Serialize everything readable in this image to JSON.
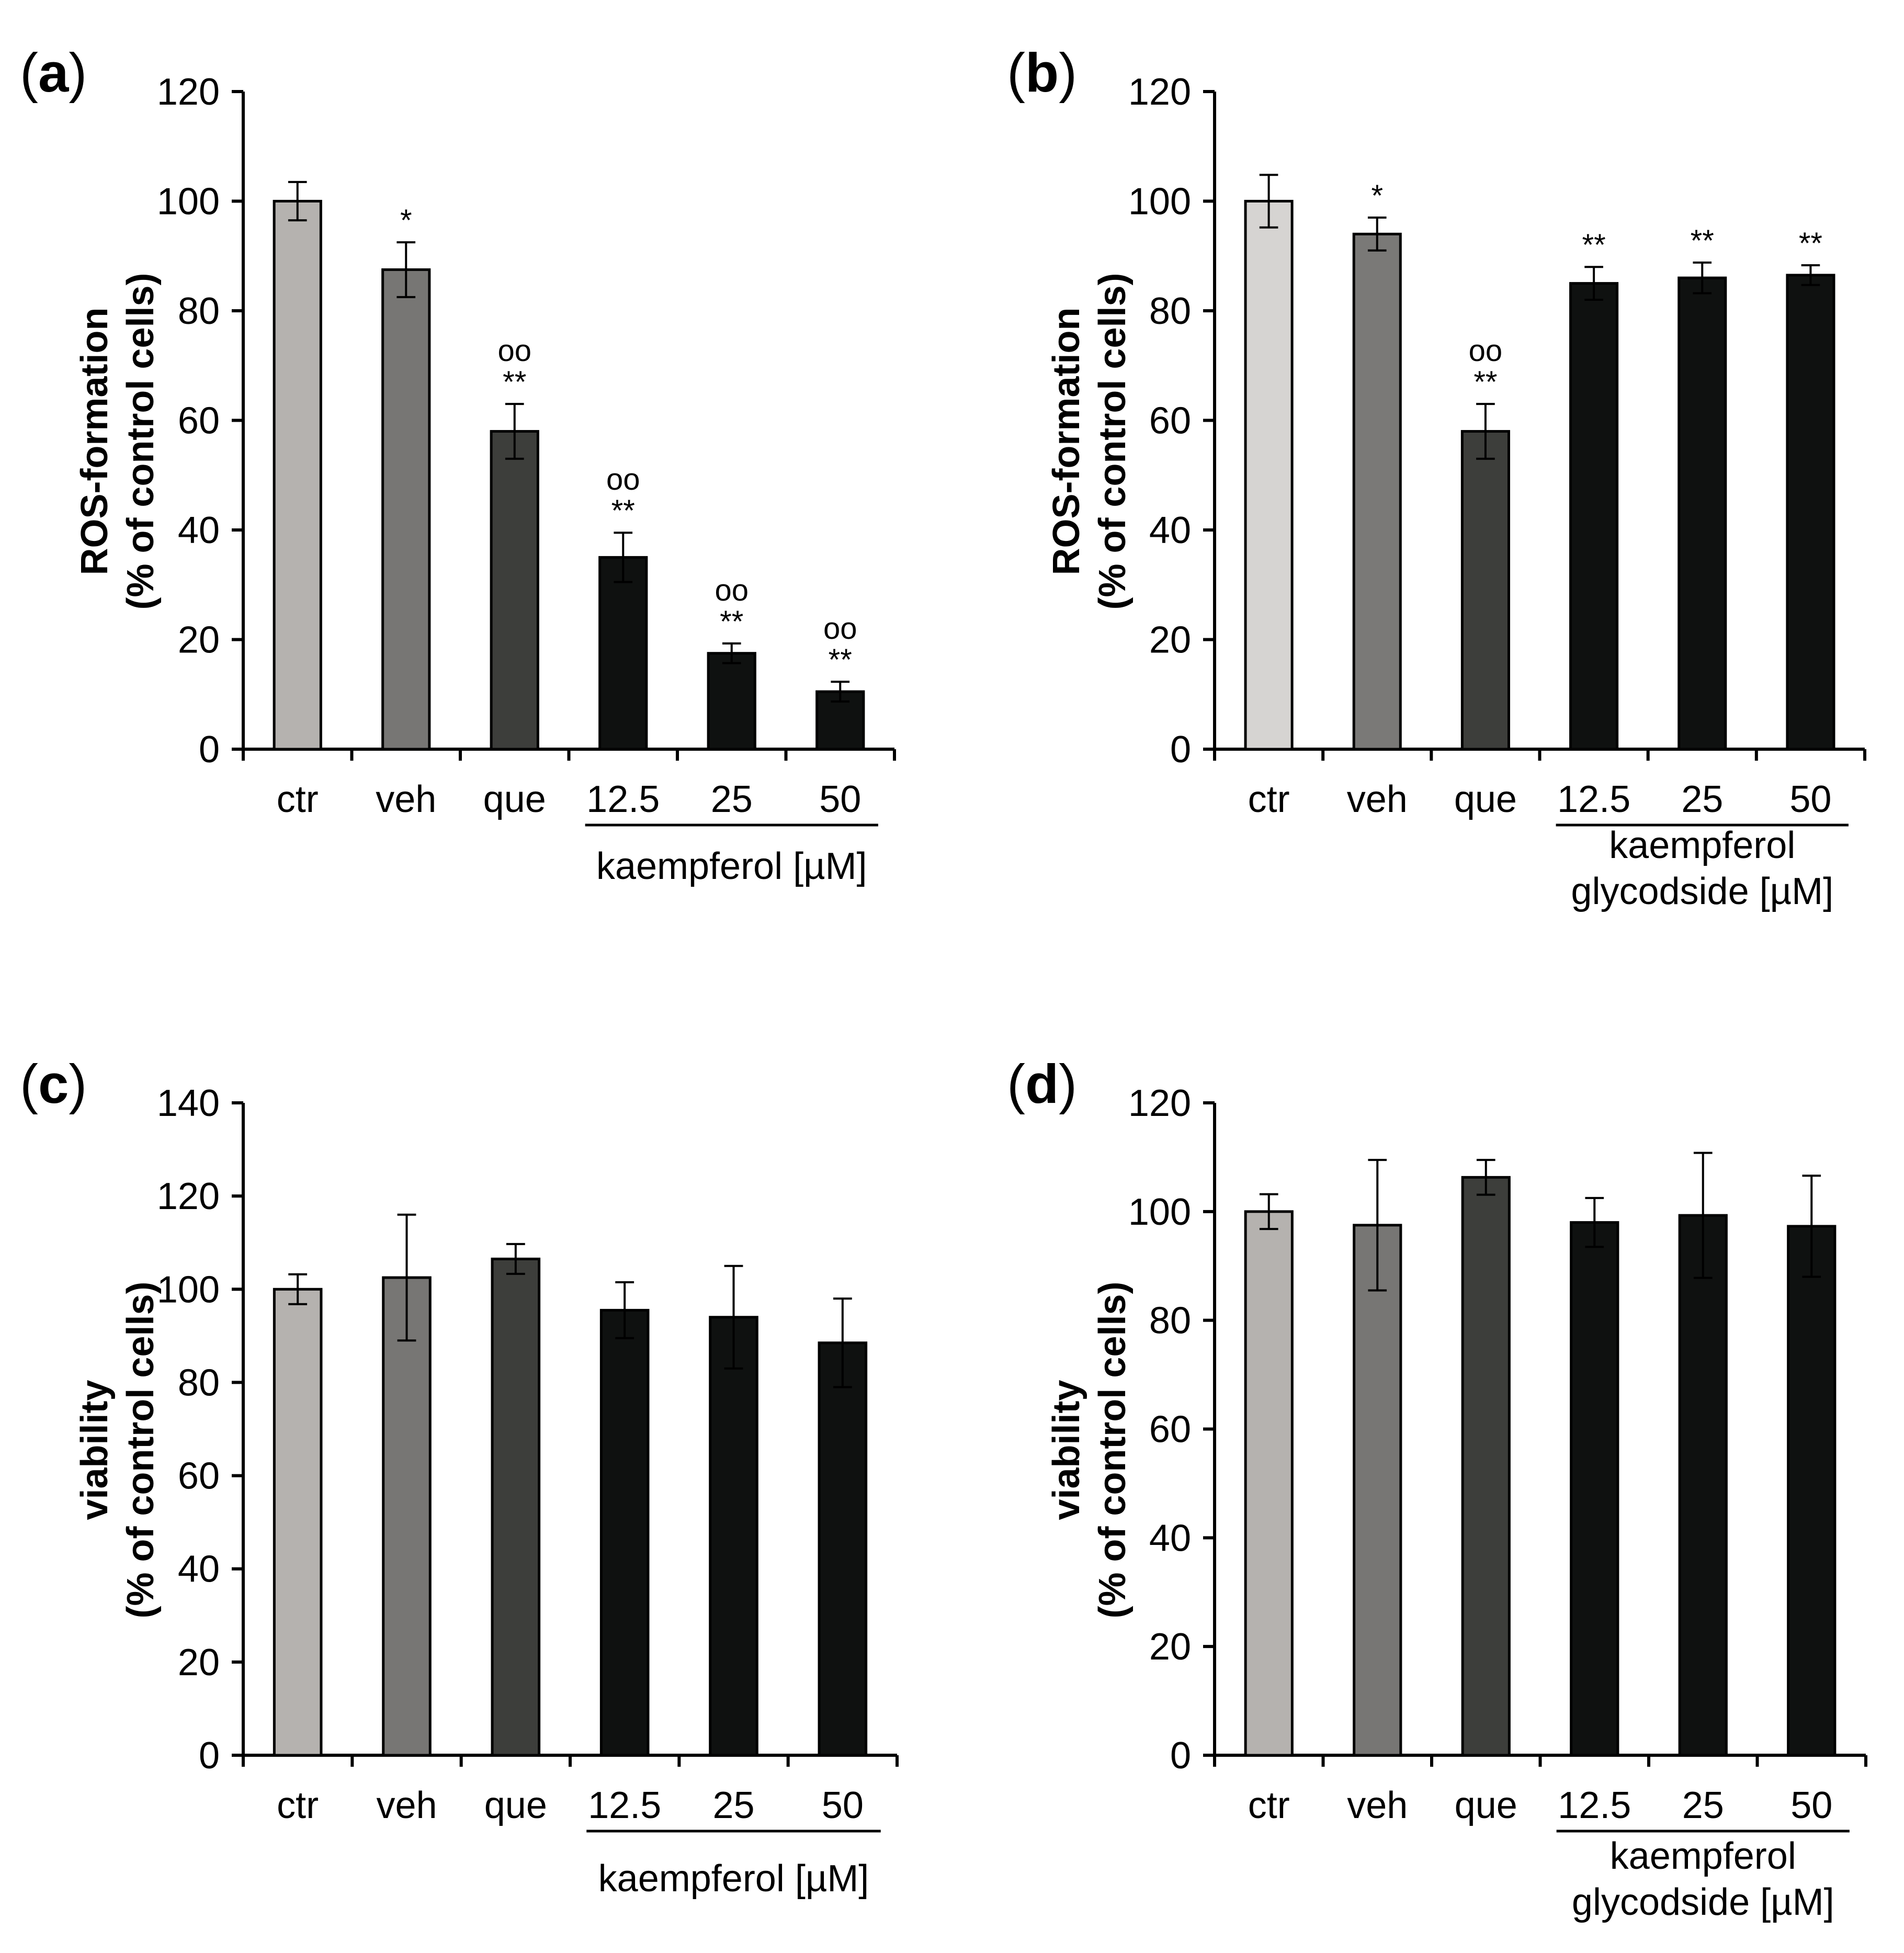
{
  "chart_data": [
    {
      "type": "bar",
      "panel": "a",
      "panel_letter": "a",
      "title": "",
      "ylabel_line1": "ROS-formation",
      "ylabel_line2": "(% of control cells)",
      "ylim": [
        0,
        120
      ],
      "yticks": [
        0,
        20,
        40,
        60,
        80,
        100,
        120
      ],
      "categories": [
        "ctr",
        "veh",
        "que",
        "12.5",
        "25",
        "50"
      ],
      "values": [
        100,
        87.5,
        58,
        35,
        17.5,
        10.5
      ],
      "errors": [
        3.5,
        5,
        5,
        4.5,
        1.8,
        1.8
      ],
      "colors": [
        "#b5b2af",
        "#777674",
        "#3d3e3b",
        "#0f1110",
        "#0f1110",
        "#0f1110"
      ],
      "significance_star": [
        "",
        "*",
        "**",
        "**",
        "**",
        "**"
      ],
      "significance_circle": [
        "",
        "",
        "oo",
        "oo",
        "oo",
        "oo"
      ],
      "group_label_lines": [
        "kaempferol [µM]"
      ],
      "group_span": [
        3,
        5
      ]
    },
    {
      "type": "bar",
      "panel": "b",
      "panel_letter": "b",
      "title": "",
      "ylabel_line1": "ROS-formation",
      "ylabel_line2": "(% of control cells)",
      "ylim": [
        0,
        120
      ],
      "yticks": [
        0,
        20,
        40,
        60,
        80,
        100,
        120
      ],
      "categories": [
        "ctr",
        "veh",
        "que",
        "12.5",
        "25",
        "50"
      ],
      "values": [
        100,
        94,
        58,
        85,
        86,
        86.5
      ],
      "errors": [
        4.8,
        3,
        5,
        3,
        2.8,
        1.8
      ],
      "colors": [
        "#d6d4d2",
        "#7a7977",
        "#3d3e3b",
        "#0f1110",
        "#0f1110",
        "#0f1110"
      ],
      "significance_star": [
        "",
        "*",
        "**",
        "**",
        "**",
        "**"
      ],
      "significance_circle": [
        "",
        "",
        "oo",
        "",
        "",
        ""
      ],
      "group_label_lines": [
        "kaempferol",
        "glycodside [µM]"
      ],
      "group_span": [
        3,
        5
      ]
    },
    {
      "type": "bar",
      "panel": "c",
      "panel_letter": "c",
      "title": "",
      "ylabel_line1": "viability",
      "ylabel_line2": "(% of control cells)",
      "ylim": [
        0,
        140
      ],
      "yticks": [
        0,
        20,
        40,
        60,
        80,
        100,
        120,
        140
      ],
      "categories": [
        "ctr",
        "veh",
        "que",
        "12.5",
        "25",
        "50"
      ],
      "values": [
        100,
        102.5,
        106.5,
        95.5,
        94,
        88.5
      ],
      "errors": [
        3.2,
        13.5,
        3.2,
        6,
        11,
        9.5
      ],
      "colors": [
        "#b5b2af",
        "#777674",
        "#3d3e3b",
        "#0f1110",
        "#0f1110",
        "#0f1110"
      ],
      "significance_star": [
        "",
        "",
        "",
        "",
        "",
        ""
      ],
      "significance_circle": [
        "",
        "",
        "",
        "",
        "",
        ""
      ],
      "group_label_lines": [
        "kaempferol [µM]"
      ],
      "group_span": [
        3,
        5
      ]
    },
    {
      "type": "bar",
      "panel": "d",
      "panel_letter": "d",
      "title": "",
      "ylabel_line1": "viability",
      "ylabel_line2": "(% of control cells)",
      "ylim": [
        0,
        120
      ],
      "yticks": [
        0,
        20,
        40,
        60,
        80,
        100,
        120
      ],
      "categories": [
        "ctr",
        "veh",
        "que",
        "12.5",
        "25",
        "50"
      ],
      "values": [
        100,
        97.5,
        106.3,
        98,
        99.3,
        97.3
      ],
      "errors": [
        3.2,
        12,
        3.2,
        4.5,
        11.5,
        9.3
      ],
      "colors": [
        "#b5b2af",
        "#777674",
        "#3d3e3b",
        "#0f1110",
        "#0f1110",
        "#0f1110"
      ],
      "significance_star": [
        "",
        "",
        "",
        "",
        "",
        ""
      ],
      "significance_circle": [
        "",
        "",
        "",
        "",
        "",
        ""
      ],
      "group_label_lines": [
        "kaempferol",
        "glycodside [µM]"
      ],
      "group_span": [
        3,
        5
      ]
    }
  ]
}
